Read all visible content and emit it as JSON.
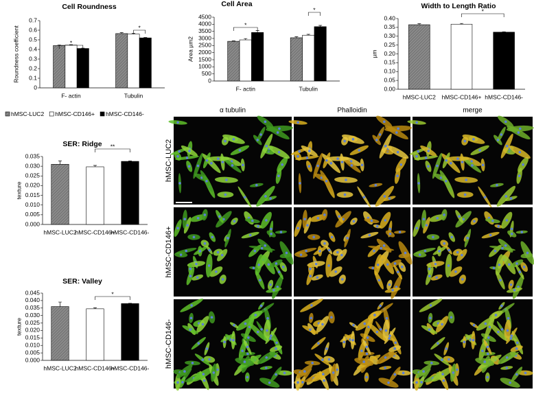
{
  "chart_data": [
    {
      "type": "grouped-bar",
      "title": "Cell Roundness",
      "y_label": "Roundness coefficient",
      "categories": [
        "F- actin",
        "Tubulin"
      ],
      "series": [
        {
          "name": "hMSC-LUC2",
          "color": "#8a8a8a",
          "values": [
            0.44,
            0.565
          ],
          "errors": [
            0.006,
            0.01
          ]
        },
        {
          "name": "hMSC-CD146+",
          "color": "#ffffff",
          "values": [
            0.445,
            0.56
          ],
          "errors": [
            0.004,
            0.006
          ]
        },
        {
          "name": "hMSC-CD146-",
          "color": "#000000",
          "values": [
            0.41,
            0.52
          ],
          "errors": [
            0.004,
            0.004
          ]
        }
      ],
      "ylim": [
        0,
        0.7
      ],
      "yticks": [
        0,
        0.1,
        0.2,
        0.3,
        0.4,
        0.5,
        0.6,
        0.7
      ],
      "annotations": [
        "*",
        "*"
      ],
      "legend": "bottom"
    },
    {
      "type": "grouped-bar",
      "title": "Cell Area",
      "y_label": "Area µm2",
      "categories": [
        "F- actin",
        "Tubulin"
      ],
      "series": [
        {
          "name": "hMSC-LUC2",
          "color": "#8a8a8a",
          "values": [
            2800,
            3050
          ],
          "errors": [
            30,
            70
          ]
        },
        {
          "name": "hMSC-CD146+",
          "color": "#ffffff",
          "values": [
            2900,
            3230
          ],
          "errors": [
            90,
            60
          ]
        },
        {
          "name": "hMSC-CD146-",
          "color": "#000000",
          "values": [
            3420,
            3830
          ],
          "errors": [
            130,
            90
          ]
        }
      ],
      "ylim": [
        0,
        4500
      ],
      "yticks": [
        0,
        500,
        1000,
        1500,
        2000,
        2500,
        3000,
        3500,
        4000,
        4500
      ],
      "annotations": [
        "*",
        "*"
      ]
    },
    {
      "type": "bar",
      "title": "Width to Length Ratio",
      "y_label": "µm",
      "categories": [
        "hMSC-LUC2",
        "hMSC-CD146+",
        "hMSC-CD146-"
      ],
      "values": [
        0.365,
        0.368,
        0.323
      ],
      "errors": [
        0.006,
        0.004,
        0.002
      ],
      "colors": [
        "#8a8a8a",
        "#ffffff",
        "#000000"
      ],
      "ylim": [
        0,
        0.4
      ],
      "yticks": [
        {
          "value": 0,
          "label": "0.00"
        },
        {
          "value": 0.05,
          "label": "0.05"
        },
        {
          "value": 0.1,
          "label": "0.10"
        },
        {
          "value": 0.15,
          "label": "0.15"
        },
        {
          "value": 0.2,
          "label": "0.20"
        },
        {
          "value": 0.25,
          "label": "0.25"
        },
        {
          "value": 0.3,
          "label": "0.30"
        },
        {
          "value": 0.35,
          "label": "0.35"
        },
        {
          "value": 0.4,
          "label": "0.40"
        }
      ],
      "annotations": [
        "*"
      ]
    },
    {
      "type": "bar",
      "title": "SER:  Ridge",
      "y_label": "texture",
      "categories": [
        "hMSC-LUC2",
        "hMSC-CD146+",
        "hMSC-CD146-"
      ],
      "values": [
        0.031,
        0.0297,
        0.0325
      ],
      "errors": [
        0.0017,
        0.0007,
        0.0002
      ],
      "colors": [
        "#8a8a8a",
        "#ffffff",
        "#000000"
      ],
      "ylim": [
        0,
        0.035
      ],
      "yticks": [
        {
          "value": 0,
          "label": "0.000"
        },
        {
          "value": 0.005,
          "label": "0.005"
        },
        {
          "value": 0.01,
          "label": "0.010"
        },
        {
          "value": 0.015,
          "label": "0.015"
        },
        {
          "value": 0.02,
          "label": "0.020"
        },
        {
          "value": 0.025,
          "label": "0.025"
        },
        {
          "value": 0.03,
          "label": "0.030"
        },
        {
          "value": 0.035,
          "label": "0.035"
        }
      ],
      "annotations": [
        "**"
      ]
    },
    {
      "type": "bar",
      "title": "SER:  Valley",
      "y_label": "texture",
      "categories": [
        "hMSC-LUC2",
        "hMSC-CD146+",
        "hMSC-CD146-"
      ],
      "values": [
        0.036,
        0.0345,
        0.038
      ],
      "errors": [
        0.003,
        0.0007,
        0.0002
      ],
      "colors": [
        "#8a8a8a",
        "#ffffff",
        "#000000"
      ],
      "ylim": [
        0,
        0.045
      ],
      "yticks": [
        {
          "value": 0,
          "label": "0.000"
        },
        {
          "value": 0.005,
          "label": "0.005"
        },
        {
          "value": 0.01,
          "label": "0.010"
        },
        {
          "value": 0.015,
          "label": "0.015"
        },
        {
          "value": 0.02,
          "label": "0.020"
        },
        {
          "value": 0.025,
          "label": "0.025"
        },
        {
          "value": 0.03,
          "label": "0.030"
        },
        {
          "value": 0.035,
          "label": "0.035"
        },
        {
          "value": 0.04,
          "label": "0.040"
        },
        {
          "value": 0.045,
          "label": "0.045"
        }
      ],
      "annotations": [
        "*"
      ]
    }
  ],
  "image_panel": {
    "columns": [
      "α tubulin",
      "Phalloidin",
      "merge"
    ],
    "rows": [
      "hMSC-LUC2",
      "hMSC-CD146+",
      "hMSC-CD146-"
    ]
  }
}
